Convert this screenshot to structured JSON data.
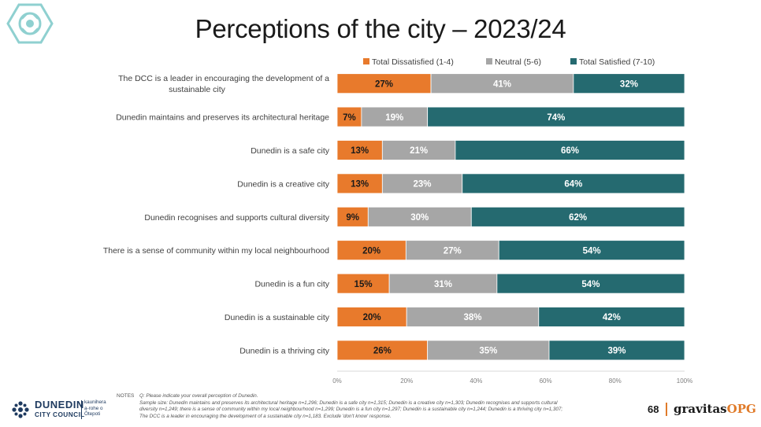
{
  "page": {
    "title": "Perceptions of the city – 2023/24",
    "page_number": "68"
  },
  "colors": {
    "dissatisfied": "#e87a2c",
    "neutral": "#a6a6a6",
    "satisfied": "#256a70",
    "accent": "#e07b2a",
    "logo_teal": "#8fd0d0",
    "dcc_navy": "#1e3a5f"
  },
  "chart_data": {
    "type": "bar",
    "orientation": "horizontal",
    "stacked": "100%",
    "legend_position": "top",
    "grid": false,
    "xlim": [
      0,
      100
    ],
    "x_ticks": [
      "0%",
      "20%",
      "40%",
      "60%",
      "80%",
      "100%"
    ],
    "categories": [
      "The DCC is a leader in encouraging the development of a sustainable city",
      "Dunedin maintains and preserves its architectural heritage",
      "Dunedin is a safe city",
      "Dunedin is a creative city",
      "Dunedin recognises and supports cultural diversity",
      "There is a sense of community within my local neighbourhood",
      "Dunedin is a fun city",
      "Dunedin is a sustainable city",
      "Dunedin is a thriving city"
    ],
    "series": [
      {
        "name": "Total Dissatisfied (1-4)",
        "values": [
          27,
          7,
          13,
          13,
          9,
          20,
          15,
          20,
          26
        ],
        "labels": [
          "27%",
          "7%",
          "13%",
          "13%",
          "9%",
          "20%",
          "15%",
          "20%",
          "26%"
        ]
      },
      {
        "name": "Neutral (5-6)",
        "values": [
          41,
          19,
          21,
          23,
          30,
          27,
          31,
          38,
          35
        ],
        "labels": [
          "41%",
          "19%",
          "21%",
          "23%",
          "30%",
          "27%",
          "31%",
          "38%",
          "35%"
        ]
      },
      {
        "name": "Total Satisfied (7-10)",
        "values": [
          32,
          74,
          66,
          64,
          62,
          54,
          54,
          42,
          39
        ],
        "labels": [
          "32%",
          "74%",
          "66%",
          "64%",
          "62%",
          "54%",
          "54%",
          "42%",
          "39%"
        ]
      }
    ]
  },
  "notes": {
    "label": "NOTES",
    "lines": [
      "Q: Please indicate your overall perception of Dunedin.",
      "Sample size: Dunedin maintains and preserves its architectural heritage n=1,296; Dunedin is a safe city n=1,315; Dunedin is a creative city n=1,303; Dunedin recognises and supports cultural",
      "diversity  n=1,249; there is a sense of community within my local neighbourhood n=1,299; Dunedin is a fun city n=1,297; Dunedin is a sustainable city n=1,244; Dunedin is a thriving city n=1,307;",
      "The DCC is a leader in encouraging the development of a sustainable city n=1,183. Exclude 'don't know' response."
    ]
  },
  "logos": {
    "dcc_line1": "DUNEDIN",
    "dcc_line2": "CITY COUNCIL",
    "dcc_maori_1": "kaunihera",
    "dcc_maori_2": "a-rohe o",
    "dcc_maori_3": "Ōtepoti",
    "gravitas_main": "gravitas",
    "gravitas_suffix": "OPG"
  }
}
